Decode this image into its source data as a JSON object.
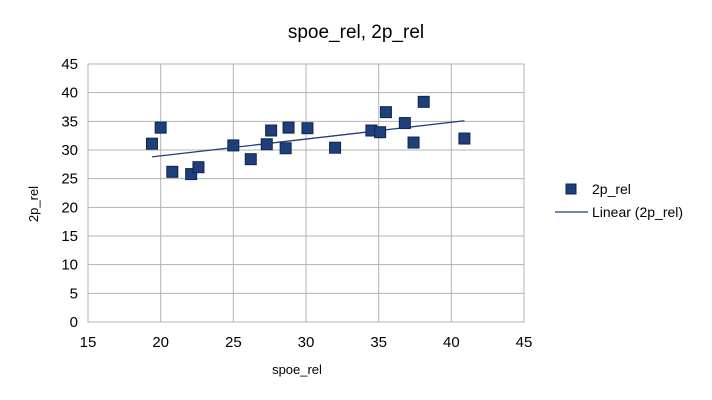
{
  "chart_data": {
    "type": "scatter",
    "title": "spoe_rel, 2p_rel",
    "xlabel": "spoe_rel",
    "ylabel": "2p_rel",
    "xlim": [
      15,
      45
    ],
    "ylim": [
      0,
      45
    ],
    "xticks": [
      15,
      20,
      25,
      30,
      35,
      40,
      45
    ],
    "yticks": [
      0,
      5,
      10,
      15,
      20,
      25,
      30,
      35,
      40,
      45
    ],
    "grid": true,
    "legend_position": "right",
    "series": [
      {
        "name": "2p_rel",
        "color": "#1f3f7a",
        "marker": "square",
        "points": [
          {
            "x": 19.4,
            "y": 31.1
          },
          {
            "x": 20.0,
            "y": 33.9
          },
          {
            "x": 20.8,
            "y": 26.2
          },
          {
            "x": 22.1,
            "y": 25.8
          },
          {
            "x": 22.6,
            "y": 27.0
          },
          {
            "x": 25.0,
            "y": 30.8
          },
          {
            "x": 26.2,
            "y": 28.4
          },
          {
            "x": 27.3,
            "y": 31.0
          },
          {
            "x": 27.6,
            "y": 33.4
          },
          {
            "x": 28.6,
            "y": 30.3
          },
          {
            "x": 28.8,
            "y": 33.9
          },
          {
            "x": 30.1,
            "y": 33.8
          },
          {
            "x": 32.0,
            "y": 30.4
          },
          {
            "x": 34.5,
            "y": 33.4
          },
          {
            "x": 35.1,
            "y": 33.1
          },
          {
            "x": 35.5,
            "y": 36.6
          },
          {
            "x": 36.8,
            "y": 34.7
          },
          {
            "x": 37.4,
            "y": 31.3
          },
          {
            "x": 38.1,
            "y": 38.4
          },
          {
            "x": 40.9,
            "y": 32.0
          }
        ]
      }
    ],
    "trendline": {
      "name": "Linear (2p_rel)",
      "type": "linear",
      "color": "#1f3f7a",
      "x": [
        19.4,
        40.9
      ],
      "y": [
        28.8,
        35.1
      ]
    }
  }
}
